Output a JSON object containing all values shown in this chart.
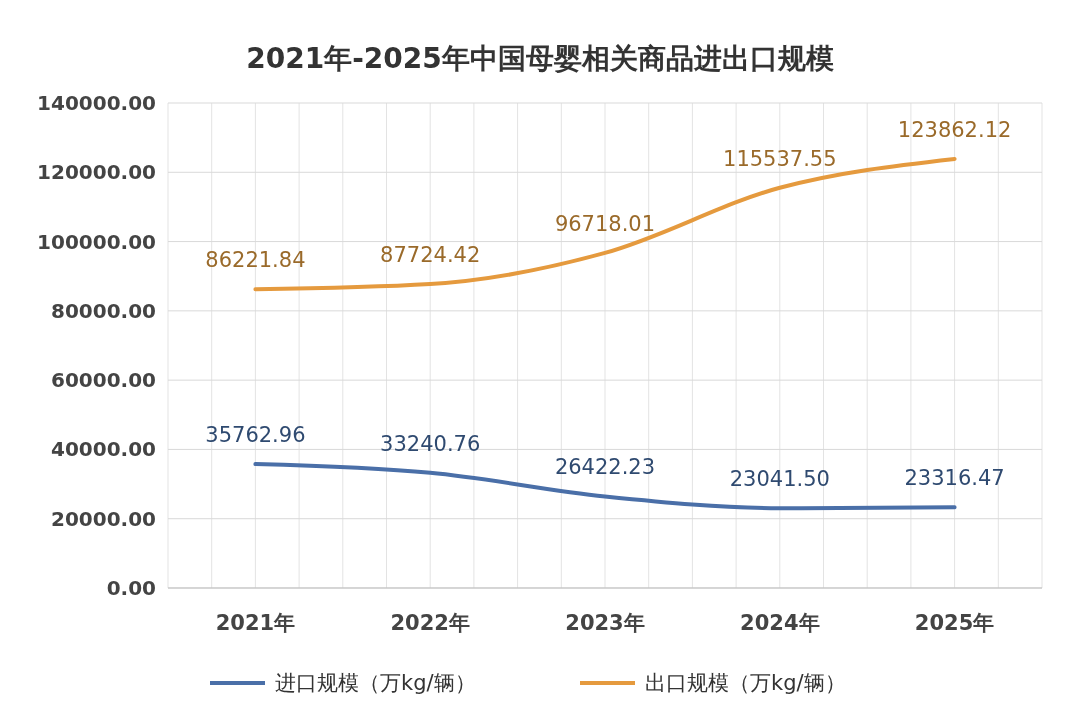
{
  "chart_data": {
    "type": "line",
    "title": "2021年-2025年中国母婴相关商品进出口规模",
    "categories": [
      "2021年",
      "2022年",
      "2023年",
      "2024年",
      "2025年"
    ],
    "series": [
      {
        "name": "进口规模（万kg/辆）",
        "color": "#4a6fa8",
        "values": [
          35762.96,
          33240.76,
          26422.23,
          23041.5,
          23316.47
        ],
        "value_labels": [
          "35762.96",
          "33240.76",
          "26422.23",
          "23041.50",
          "23316.47"
        ]
      },
      {
        "name": "出口规模（万kg/辆）",
        "color": "#e59a3e",
        "values": [
          86221.84,
          87724.42,
          96718.01,
          115537.55,
          123862.12
        ],
        "value_labels": [
          "86221.84",
          "87724.42",
          "96718.01",
          "115537.55",
          "123862.12"
        ]
      }
    ],
    "ylim": [
      0,
      140000
    ],
    "yticks": [
      {
        "value": 0,
        "label": "0.00"
      },
      {
        "value": 20000,
        "label": "20000.00"
      },
      {
        "value": 40000,
        "label": "40000.00"
      },
      {
        "value": 60000,
        "label": "60000.00"
      },
      {
        "value": 80000,
        "label": "80000.00"
      },
      {
        "value": 100000,
        "label": "100000.00"
      },
      {
        "value": 120000,
        "label": "120000.00"
      },
      {
        "value": 140000,
        "label": "140000.00"
      }
    ],
    "grid": true,
    "legend": "bottom",
    "marker": "none",
    "line_style": "solid"
  }
}
